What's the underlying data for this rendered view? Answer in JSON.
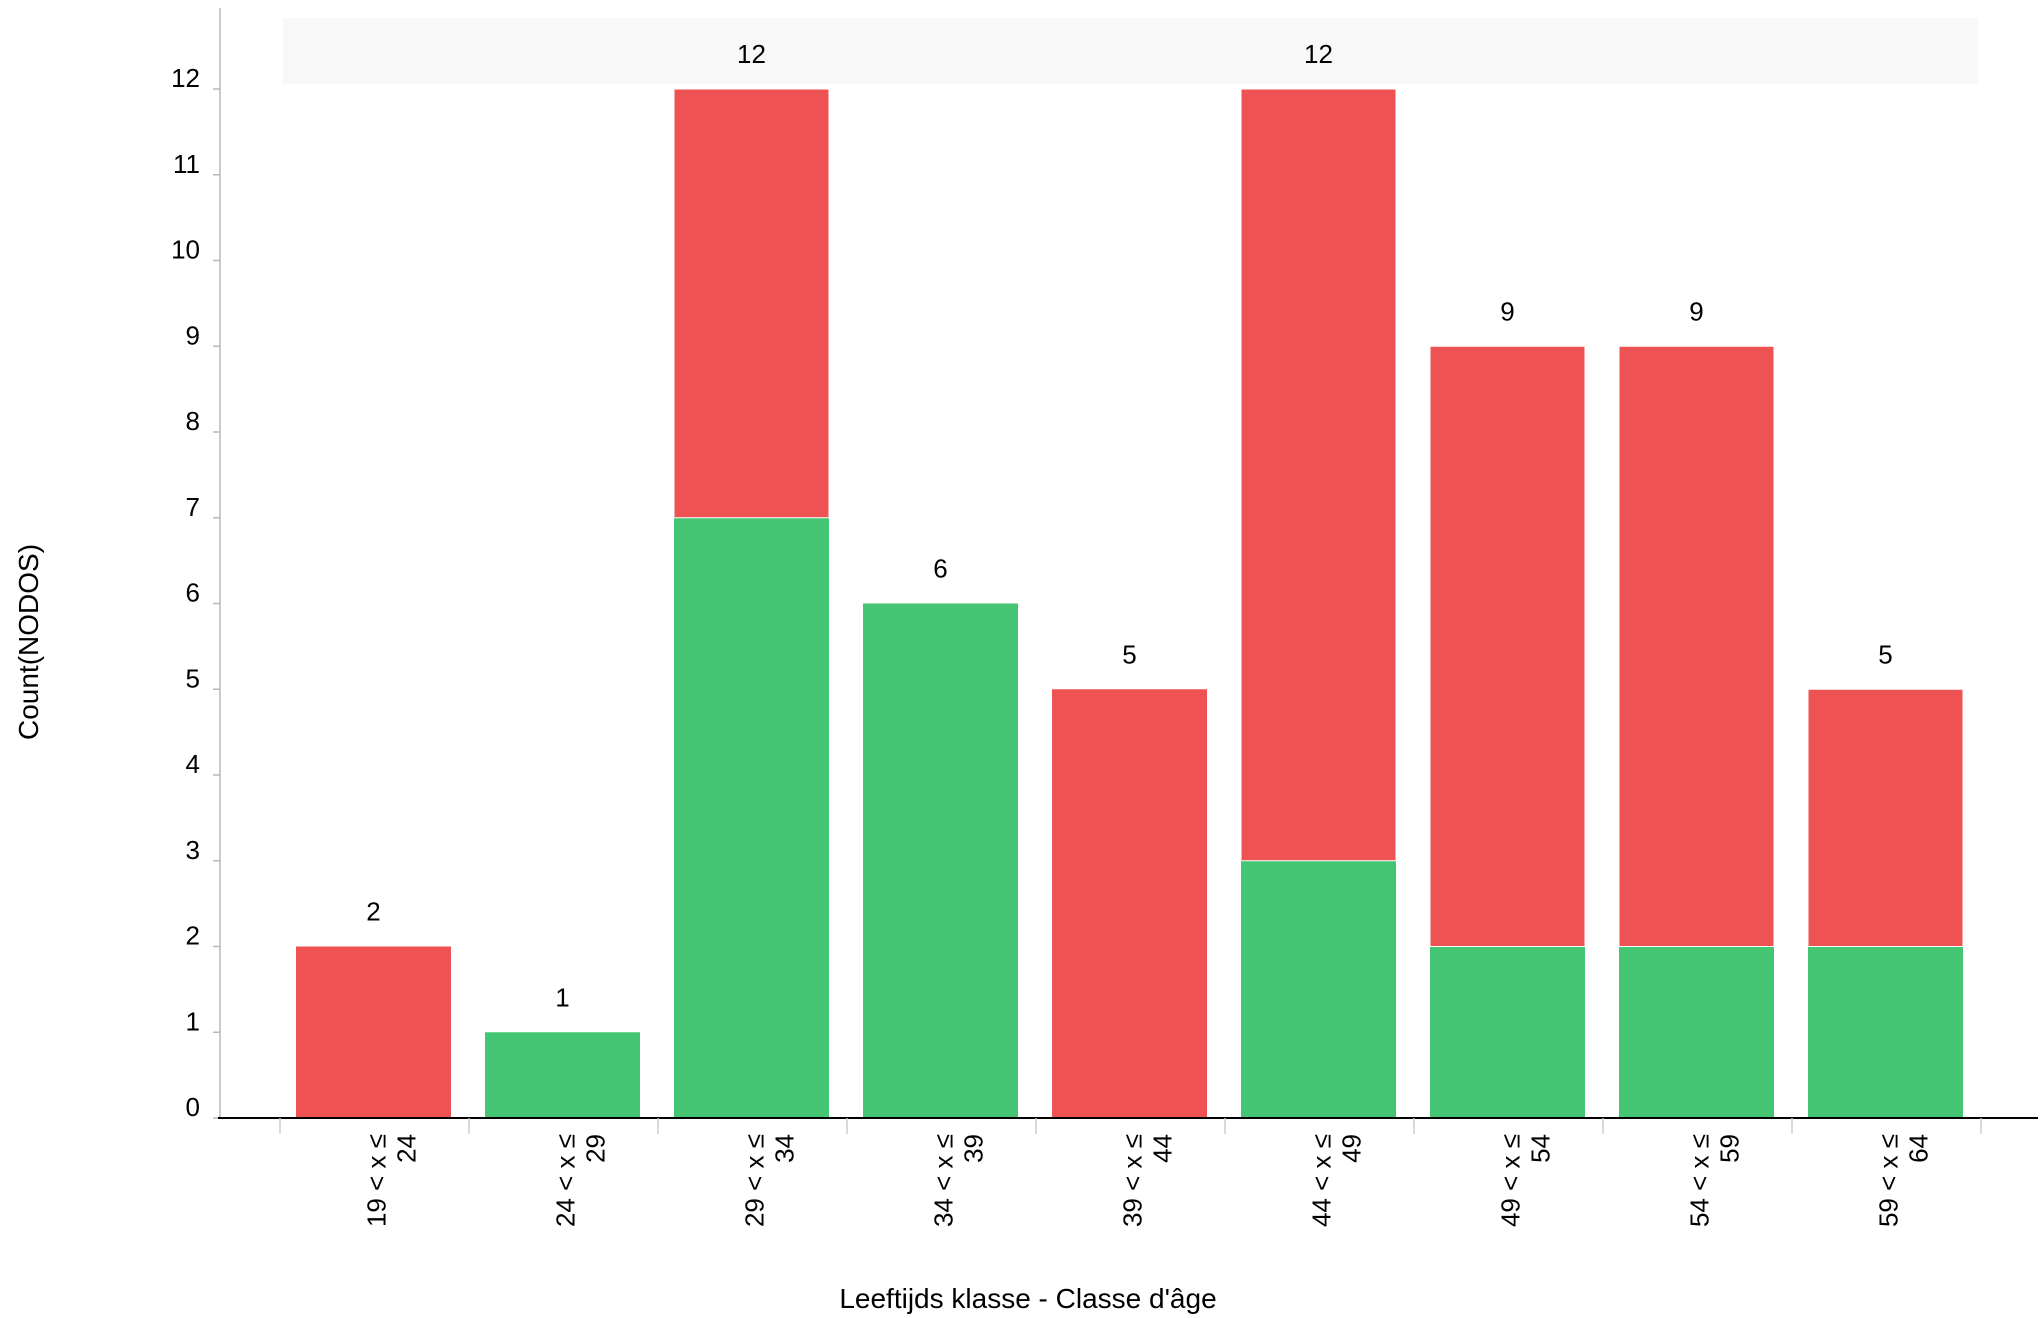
{
  "chart_data": {
    "type": "bar",
    "stacked": true,
    "xlabel": "Leeftijds klasse - Classe d'âge",
    "ylabel": "Count(NODOS)",
    "ylim": [
      0,
      12
    ],
    "yticks": [
      0,
      1,
      2,
      3,
      4,
      5,
      6,
      7,
      8,
      9,
      10,
      11,
      12
    ],
    "categories": [
      "19 < x ≤ 24",
      "24 < x ≤ 29",
      "29 < x ≤ 34",
      "34 < x ≤ 39",
      "39 < x ≤ 44",
      "44 < x ≤ 49",
      "49 < x ≤ 54",
      "54 < x ≤ 59",
      "59 < x ≤ 64"
    ],
    "series": [
      {
        "color": "#43c574",
        "values": [
          0,
          1,
          7,
          6,
          0,
          3,
          2,
          2,
          2
        ]
      },
      {
        "color": "#ef5252",
        "values": [
          2,
          0,
          5,
          0,
          5,
          9,
          7,
          7,
          3
        ]
      }
    ],
    "totals": [
      "2",
      "1",
      "12",
      "6",
      "5",
      "12",
      "9",
      "9",
      "5"
    ],
    "grid": false,
    "legend": false
  }
}
